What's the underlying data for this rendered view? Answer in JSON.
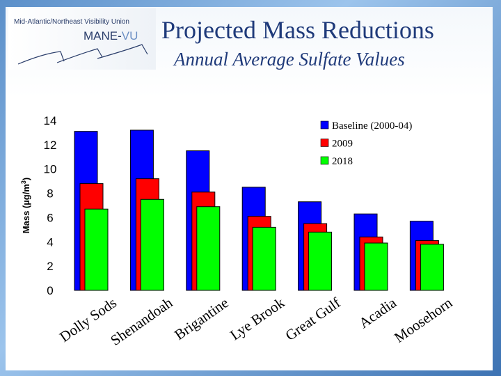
{
  "logo": {
    "line1": "Mid-Atlantic/Northeast Visibility Union",
    "line2a": "MANE-",
    "line2b": "VU"
  },
  "title": "Projected Mass Reductions",
  "subtitle": "Annual Average Sulfate Values",
  "chart_data": {
    "type": "bar",
    "title": "",
    "ylabel": "Mass (µg/m3)",
    "xlabel": "",
    "ylim": [
      0,
      14
    ],
    "yticks": [
      0,
      2,
      4,
      6,
      8,
      10,
      12,
      14
    ],
    "grid": false,
    "legend_position": "top-right",
    "categories": [
      "Dolly Sods",
      "Shenandoah",
      "Brigantine",
      "Lye Brook",
      "Great Gulf",
      "Acadia",
      "Moosehorn"
    ],
    "series": [
      {
        "name": "Baseline (2000-04)",
        "color": "#0000ff",
        "values": [
          13.1,
          13.2,
          11.5,
          8.5,
          7.3,
          6.3,
          5.7
        ]
      },
      {
        "name": "2009",
        "color": "#ff0000",
        "values": [
          8.8,
          9.2,
          8.1,
          6.1,
          5.5,
          4.4,
          4.1
        ]
      },
      {
        "name": "2018",
        "color": "#00ff00",
        "values": [
          6.7,
          7.5,
          6.9,
          5.2,
          4.8,
          3.9,
          3.8
        ]
      }
    ]
  }
}
